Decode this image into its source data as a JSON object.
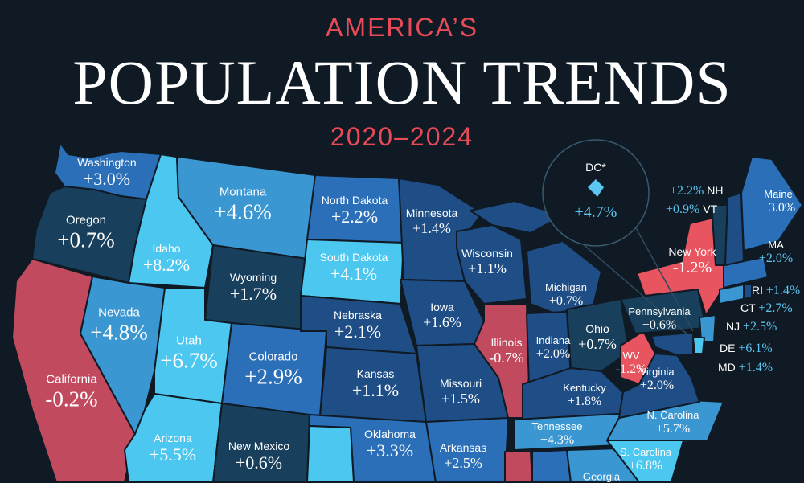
{
  "title": {
    "line1": "AMERICA’S",
    "line2": "POPULATION TRENDS",
    "line3": "2020–2024"
  },
  "colors": {
    "background": "#0f1a24",
    "title_accent": "#e84b57",
    "decline_red": "#e8545f",
    "california_red": "#c14a5f",
    "growth_light": "#4cc7f0",
    "growth_mid": "#3a97d1",
    "growth_blue": "#2a6fb8",
    "growth_dark": "#1e4e85",
    "growth_darkest": "#183f5c",
    "small_state_value": "#5bc6f2"
  },
  "states": {
    "washington": {
      "name": "Washington",
      "change": "+3.0%",
      "value": 3.0
    },
    "oregon": {
      "name": "Oregon",
      "change": "+0.7%",
      "value": 0.7
    },
    "california": {
      "name": "California",
      "change": "-0.2%",
      "value": -0.2
    },
    "idaho": {
      "name": "Idaho",
      "change": "+8.2%",
      "value": 8.2
    },
    "nevada": {
      "name": "Nevada",
      "change": "+4.8%",
      "value": 4.8
    },
    "montana": {
      "name": "Montana",
      "change": "+4.6%",
      "value": 4.6
    },
    "wyoming": {
      "name": "Wyoming",
      "change": "+1.7%",
      "value": 1.7
    },
    "utah": {
      "name": "Utah",
      "change": "+6.7%",
      "value": 6.7
    },
    "arizona": {
      "name": "Arizona",
      "change": "+5.5%",
      "value": 5.5
    },
    "colorado": {
      "name": "Colorado",
      "change": "+2.9%",
      "value": 2.9
    },
    "new_mexico": {
      "name": "New Mexico",
      "change": "+0.6%",
      "value": 0.6
    },
    "north_dakota": {
      "name": "North Dakota",
      "change": "+2.2%",
      "value": 2.2
    },
    "south_dakota": {
      "name": "South Dakota",
      "change": "+4.1%",
      "value": 4.1
    },
    "nebraska": {
      "name": "Nebraska",
      "change": "+2.1%",
      "value": 2.1
    },
    "kansas": {
      "name": "Kansas",
      "change": "+1.1%",
      "value": 1.1
    },
    "oklahoma": {
      "name": "Oklahoma",
      "change": "+3.3%",
      "value": 3.3
    },
    "minnesota": {
      "name": "Minnesota",
      "change": "+1.4%",
      "value": 1.4
    },
    "iowa": {
      "name": "Iowa",
      "change": "+1.6%",
      "value": 1.6
    },
    "missouri": {
      "name": "Missouri",
      "change": "+1.5%",
      "value": 1.5
    },
    "arkansas": {
      "name": "Arkansas",
      "change": "+2.5%",
      "value": 2.5
    },
    "wisconsin": {
      "name": "Wisconsin",
      "change": "+1.1%",
      "value": 1.1
    },
    "illinois": {
      "name": "Illinois",
      "change": "-0.7%",
      "value": -0.7
    },
    "michigan": {
      "name": "Michigan",
      "change": "+0.7%",
      "value": 0.7
    },
    "indiana": {
      "name": "Indiana",
      "change": "+2.0%",
      "value": 2.0
    },
    "ohio": {
      "name": "Ohio",
      "change": "+0.7%",
      "value": 0.7
    },
    "kentucky": {
      "name": "Kentucky",
      "change": "+1.8%",
      "value": 1.8
    },
    "tennessee": {
      "name": "Tennessee",
      "change": "+4.3%",
      "value": 4.3
    },
    "west_virginia": {
      "name": "WV",
      "change": "-1.2%",
      "value": -1.2
    },
    "virginia": {
      "name": "Virginia",
      "change": "+2.0%",
      "value": 2.0
    },
    "north_carolina": {
      "name": "N. Carolina",
      "change": "+5.7%",
      "value": 5.7
    },
    "south_carolina": {
      "name": "S. Carolina",
      "change": "+6.8%",
      "value": 6.8
    },
    "georgia": {
      "name": "Georgia"
    },
    "pennsylvania": {
      "name": "Pennsylvania",
      "change": "+0.6%",
      "value": 0.6
    },
    "new_york": {
      "name": "New York",
      "change": "-1.2%",
      "value": -1.2
    },
    "maine": {
      "name": "Maine",
      "change": "+3.0%",
      "value": 3.0
    },
    "new_hampshire": {
      "name": "NH",
      "change": "+2.2%",
      "value": 2.2
    },
    "vermont": {
      "name": "VT",
      "change": "+0.9%",
      "value": 0.9
    },
    "massachusetts": {
      "name": "MA",
      "change": "+2.0%",
      "value": 2.0
    },
    "rhode_island": {
      "name": "RI",
      "change": "+1.4%",
      "value": 1.4
    },
    "connecticut": {
      "name": "CT",
      "change": "+2.7%",
      "value": 2.7
    },
    "new_jersey": {
      "name": "NJ",
      "change": "+2.5%",
      "value": 2.5
    },
    "delaware": {
      "name": "DE",
      "change": "+6.1%",
      "value": 6.1
    },
    "maryland": {
      "name": "MD",
      "change": "+1.4%",
      "value": 1.4
    },
    "dc": {
      "name": "DC*",
      "change": "+4.7%",
      "value": 4.7
    }
  }
}
